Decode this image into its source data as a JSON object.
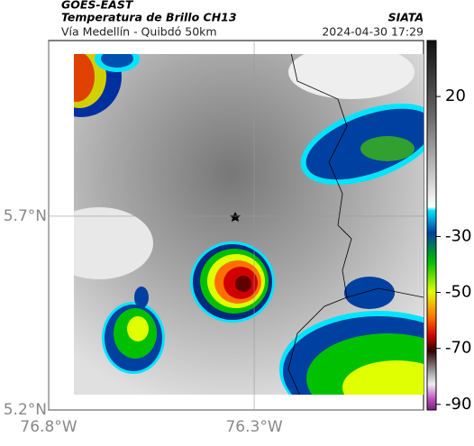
{
  "header": {
    "title": "GOES-EAST",
    "subtitle": "Temperatura de Brillo CH13",
    "source": "SIATA",
    "region": "Vía Medellín - Quibdó 50km",
    "datetime": "2024-04-30 17:29"
  },
  "map": {
    "latlim": [
      5.2,
      6.153
    ],
    "lonlim": [
      -76.8,
      -75.888
    ],
    "lat_ticks": [
      {
        "value": 5.7,
        "label": "5.7°N"
      },
      {
        "value": 5.2,
        "label": "5.2°N"
      }
    ],
    "lon_ticks": [
      {
        "value": -76.8,
        "label": "76.8°W"
      },
      {
        "value": -76.3,
        "label": "76.3°W"
      }
    ]
  },
  "colorbar": {
    "lim": [
      -92,
      40
    ],
    "ticks": [
      20,
      -30,
      -50,
      -70,
      -90
    ]
  }
}
